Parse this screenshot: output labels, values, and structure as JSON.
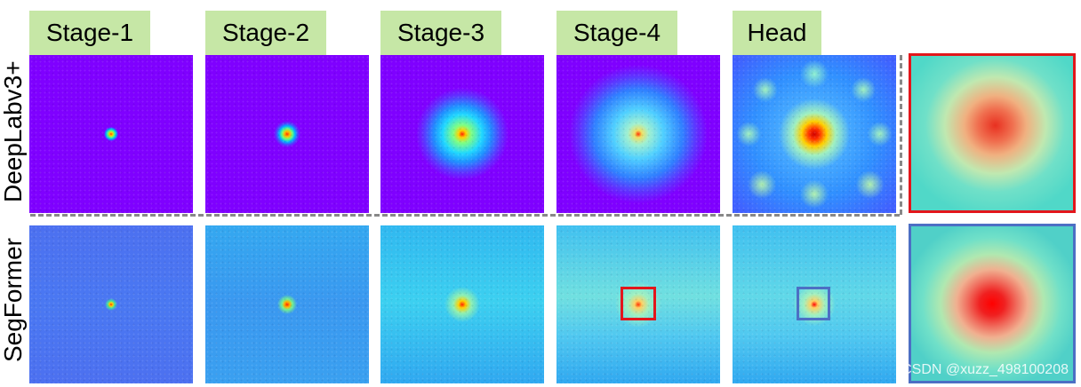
{
  "stages": [
    "Stage-1",
    "Stage-2",
    "Stage-3",
    "Stage-4",
    "Head"
  ],
  "rows": [
    "DeepLabv3+",
    "SegFormer"
  ],
  "watermark": "CSDN @xuzz_498100208",
  "colors": {
    "label_bg": "#c6e7a6",
    "deeplab_bg": "#7f00ff",
    "highlight_red": "#e3161b",
    "highlight_blue": "#4c6fc4",
    "divider": "#888888"
  }
}
